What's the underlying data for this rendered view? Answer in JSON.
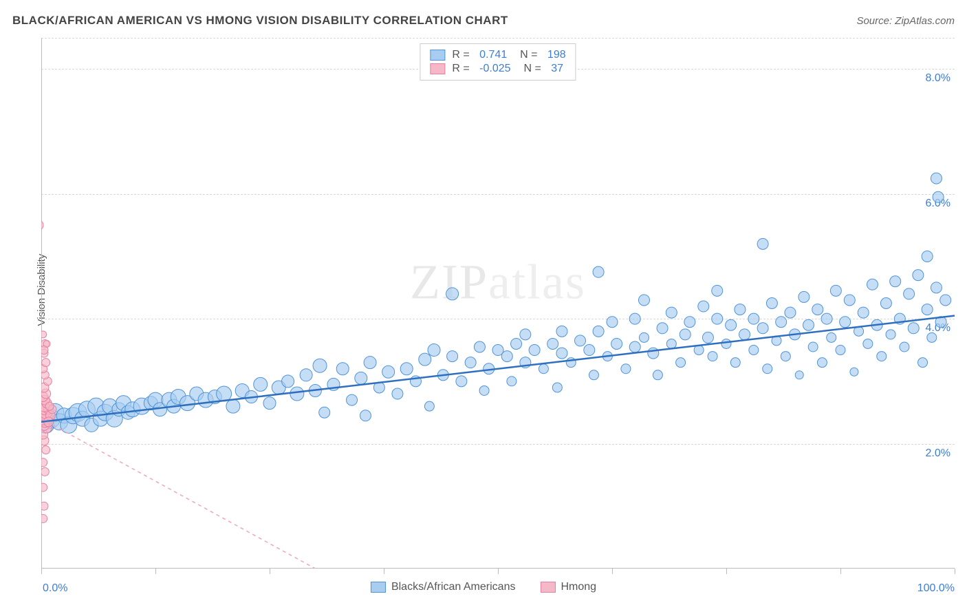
{
  "title": "BLACK/AFRICAN AMERICAN VS HMONG VISION DISABILITY CORRELATION CHART",
  "source": "Source: ZipAtlas.com",
  "ylabel": "Vision Disability",
  "watermark": "ZIPatlas",
  "chart": {
    "type": "scatter",
    "xlim": [
      0,
      100
    ],
    "ylim": [
      0,
      8.5
    ],
    "xtick_positions": [
      0,
      12.5,
      25,
      37.5,
      50,
      62.5,
      75,
      87.5,
      100
    ],
    "xtick_labels": {
      "0": "0.0%",
      "100": "100.0%"
    },
    "ytick_positions": [
      2.0,
      4.0,
      6.0,
      8.0
    ],
    "ytick_labels": [
      "2.0%",
      "4.0%",
      "6.0%",
      "8.0%"
    ],
    "grid_color": "#d8d8d8",
    "background_color": "#ffffff",
    "text_color_title": "#444444",
    "text_color_axis": "#555555",
    "tick_label_color": "#3b7dd8",
    "series": [
      {
        "name": "Blacks/African Americans",
        "fill_color": "#a8cdf0",
        "stroke_color": "#4f93d8",
        "fill_opacity": 0.65,
        "marker_radius_range": [
          6,
          14
        ],
        "correlation_R": 0.741,
        "correlation_N": 198,
        "trendline": {
          "x1": 0,
          "y1": 2.35,
          "x2": 100,
          "y2": 4.05,
          "color": "#2f6fc0",
          "width": 2.5,
          "dash": "none"
        },
        "points": [
          {
            "x": 0.5,
            "y": 2.3,
            "r": 12
          },
          {
            "x": 1,
            "y": 2.4,
            "r": 14
          },
          {
            "x": 1.5,
            "y": 2.5,
            "r": 13
          },
          {
            "x": 2,
            "y": 2.35,
            "r": 12
          },
          {
            "x": 2.5,
            "y": 2.45,
            "r": 11
          },
          {
            "x": 3,
            "y": 2.3,
            "r": 12
          },
          {
            "x": 3.5,
            "y": 2.45,
            "r": 12
          },
          {
            "x": 4,
            "y": 2.5,
            "r": 13
          },
          {
            "x": 4.5,
            "y": 2.4,
            "r": 11
          },
          {
            "x": 5,
            "y": 2.55,
            "r": 12
          },
          {
            "x": 5.5,
            "y": 2.3,
            "r": 10
          },
          {
            "x": 6,
            "y": 2.6,
            "r": 12
          },
          {
            "x": 6.5,
            "y": 2.4,
            "r": 11
          },
          {
            "x": 7,
            "y": 2.5,
            "r": 12
          },
          {
            "x": 7.5,
            "y": 2.6,
            "r": 11
          },
          {
            "x": 8,
            "y": 2.4,
            "r": 12
          },
          {
            "x": 8.5,
            "y": 2.55,
            "r": 10
          },
          {
            "x": 9,
            "y": 2.65,
            "r": 11
          },
          {
            "x": 9.5,
            "y": 2.5,
            "r": 10
          },
          {
            "x": 10,
            "y": 2.55,
            "r": 11
          },
          {
            "x": 11,
            "y": 2.6,
            "r": 12
          },
          {
            "x": 12,
            "y": 2.65,
            "r": 10
          },
          {
            "x": 12.5,
            "y": 2.7,
            "r": 11
          },
          {
            "x": 13,
            "y": 2.55,
            "r": 10
          },
          {
            "x": 14,
            "y": 2.7,
            "r": 11
          },
          {
            "x": 14.5,
            "y": 2.6,
            "r": 10
          },
          {
            "x": 15,
            "y": 2.75,
            "r": 11
          },
          {
            "x": 16,
            "y": 2.65,
            "r": 11
          },
          {
            "x": 17,
            "y": 2.8,
            "r": 10
          },
          {
            "x": 18,
            "y": 2.7,
            "r": 11
          },
          {
            "x": 19,
            "y": 2.75,
            "r": 10
          },
          {
            "x": 20,
            "y": 2.8,
            "r": 11
          },
          {
            "x": 21,
            "y": 2.6,
            "r": 10
          },
          {
            "x": 22,
            "y": 2.85,
            "r": 10
          },
          {
            "x": 23,
            "y": 2.75,
            "r": 9
          },
          {
            "x": 24,
            "y": 2.95,
            "r": 10
          },
          {
            "x": 25,
            "y": 2.65,
            "r": 9
          },
          {
            "x": 26,
            "y": 2.9,
            "r": 10
          },
          {
            "x": 27,
            "y": 3.0,
            "r": 9
          },
          {
            "x": 28,
            "y": 2.8,
            "r": 10
          },
          {
            "x": 29,
            "y": 3.1,
            "r": 9
          },
          {
            "x": 30,
            "y": 2.85,
            "r": 9
          },
          {
            "x": 30.5,
            "y": 3.25,
            "r": 10
          },
          {
            "x": 31,
            "y": 2.5,
            "r": 8
          },
          {
            "x": 32,
            "y": 2.95,
            "r": 9
          },
          {
            "x": 33,
            "y": 3.2,
            "r": 9
          },
          {
            "x": 34,
            "y": 2.7,
            "r": 8
          },
          {
            "x": 35,
            "y": 3.05,
            "r": 9
          },
          {
            "x": 35.5,
            "y": 2.45,
            "r": 8
          },
          {
            "x": 36,
            "y": 3.3,
            "r": 9
          },
          {
            "x": 37,
            "y": 2.9,
            "r": 8
          },
          {
            "x": 38,
            "y": 3.15,
            "r": 9
          },
          {
            "x": 39,
            "y": 2.8,
            "r": 8
          },
          {
            "x": 40,
            "y": 3.2,
            "r": 9
          },
          {
            "x": 41,
            "y": 3.0,
            "r": 8
          },
          {
            "x": 42,
            "y": 3.35,
            "r": 9
          },
          {
            "x": 42.5,
            "y": 2.6,
            "r": 7
          },
          {
            "x": 43,
            "y": 3.5,
            "r": 9
          },
          {
            "x": 44,
            "y": 3.1,
            "r": 8
          },
          {
            "x": 45,
            "y": 3.4,
            "r": 8
          },
          {
            "x": 45,
            "y": 4.4,
            "r": 9
          },
          {
            "x": 46,
            "y": 3.0,
            "r": 8
          },
          {
            "x": 47,
            "y": 3.3,
            "r": 8
          },
          {
            "x": 48,
            "y": 3.55,
            "r": 8
          },
          {
            "x": 48.5,
            "y": 2.85,
            "r": 7
          },
          {
            "x": 49,
            "y": 3.2,
            "r": 8
          },
          {
            "x": 50,
            "y": 3.5,
            "r": 8
          },
          {
            "x": 51,
            "y": 3.4,
            "r": 8
          },
          {
            "x": 51.5,
            "y": 3.0,
            "r": 7
          },
          {
            "x": 52,
            "y": 3.6,
            "r": 8
          },
          {
            "x": 53,
            "y": 3.3,
            "r": 8
          },
          {
            "x": 53,
            "y": 3.75,
            "r": 8
          },
          {
            "x": 54,
            "y": 3.5,
            "r": 8
          },
          {
            "x": 55,
            "y": 3.2,
            "r": 7
          },
          {
            "x": 56,
            "y": 3.6,
            "r": 8
          },
          {
            "x": 56.5,
            "y": 2.9,
            "r": 7
          },
          {
            "x": 57,
            "y": 3.45,
            "r": 8
          },
          {
            "x": 57,
            "y": 3.8,
            "r": 8
          },
          {
            "x": 58,
            "y": 3.3,
            "r": 7
          },
          {
            "x": 59,
            "y": 3.65,
            "r": 8
          },
          {
            "x": 60,
            "y": 3.5,
            "r": 8
          },
          {
            "x": 60.5,
            "y": 3.1,
            "r": 7
          },
          {
            "x": 61,
            "y": 3.8,
            "r": 8
          },
          {
            "x": 61,
            "y": 4.75,
            "r": 8
          },
          {
            "x": 62,
            "y": 3.4,
            "r": 7
          },
          {
            "x": 62.5,
            "y": 3.95,
            "r": 8
          },
          {
            "x": 63,
            "y": 3.6,
            "r": 8
          },
          {
            "x": 64,
            "y": 3.2,
            "r": 7
          },
          {
            "x": 65,
            "y": 3.55,
            "r": 8
          },
          {
            "x": 65,
            "y": 4.0,
            "r": 8
          },
          {
            "x": 66,
            "y": 3.7,
            "r": 7
          },
          {
            "x": 66,
            "y": 4.3,
            "r": 8
          },
          {
            "x": 67,
            "y": 3.45,
            "r": 8
          },
          {
            "x": 67.5,
            "y": 3.1,
            "r": 7
          },
          {
            "x": 68,
            "y": 3.85,
            "r": 8
          },
          {
            "x": 69,
            "y": 3.6,
            "r": 7
          },
          {
            "x": 69,
            "y": 4.1,
            "r": 8
          },
          {
            "x": 70,
            "y": 3.3,
            "r": 7
          },
          {
            "x": 70.5,
            "y": 3.75,
            "r": 8
          },
          {
            "x": 71,
            "y": 3.95,
            "r": 8
          },
          {
            "x": 72,
            "y": 3.5,
            "r": 7
          },
          {
            "x": 72.5,
            "y": 4.2,
            "r": 8
          },
          {
            "x": 73,
            "y": 3.7,
            "r": 8
          },
          {
            "x": 73.5,
            "y": 3.4,
            "r": 7
          },
          {
            "x": 74,
            "y": 4.0,
            "r": 8
          },
          {
            "x": 74,
            "y": 4.45,
            "r": 8
          },
          {
            "x": 75,
            "y": 3.6,
            "r": 7
          },
          {
            "x": 75.5,
            "y": 3.9,
            "r": 8
          },
          {
            "x": 76,
            "y": 3.3,
            "r": 7
          },
          {
            "x": 76.5,
            "y": 4.15,
            "r": 8
          },
          {
            "x": 77,
            "y": 3.75,
            "r": 8
          },
          {
            "x": 78,
            "y": 3.5,
            "r": 7
          },
          {
            "x": 78,
            "y": 4.0,
            "r": 8
          },
          {
            "x": 79,
            "y": 3.85,
            "r": 8
          },
          {
            "x": 79,
            "y": 5.2,
            "r": 8
          },
          {
            "x": 79.5,
            "y": 3.2,
            "r": 7
          },
          {
            "x": 80,
            "y": 4.25,
            "r": 8
          },
          {
            "x": 80.5,
            "y": 3.65,
            "r": 7
          },
          {
            "x": 81,
            "y": 3.95,
            "r": 8
          },
          {
            "x": 81.5,
            "y": 3.4,
            "r": 7
          },
          {
            "x": 82,
            "y": 4.1,
            "r": 8
          },
          {
            "x": 82.5,
            "y": 3.75,
            "r": 8
          },
          {
            "x": 83,
            "y": 3.1,
            "r": 6
          },
          {
            "x": 83.5,
            "y": 4.35,
            "r": 8
          },
          {
            "x": 84,
            "y": 3.9,
            "r": 8
          },
          {
            "x": 84.5,
            "y": 3.55,
            "r": 7
          },
          {
            "x": 85,
            "y": 4.15,
            "r": 8
          },
          {
            "x": 85.5,
            "y": 3.3,
            "r": 7
          },
          {
            "x": 86,
            "y": 4.0,
            "r": 8
          },
          {
            "x": 86.5,
            "y": 3.7,
            "r": 7
          },
          {
            "x": 87,
            "y": 4.45,
            "r": 8
          },
          {
            "x": 87.5,
            "y": 3.5,
            "r": 7
          },
          {
            "x": 88,
            "y": 3.95,
            "r": 8
          },
          {
            "x": 88.5,
            "y": 4.3,
            "r": 8
          },
          {
            "x": 89,
            "y": 3.15,
            "r": 6
          },
          {
            "x": 89.5,
            "y": 3.8,
            "r": 7
          },
          {
            "x": 90,
            "y": 4.1,
            "r": 8
          },
          {
            "x": 90.5,
            "y": 3.6,
            "r": 7
          },
          {
            "x": 91,
            "y": 4.55,
            "r": 8
          },
          {
            "x": 91.5,
            "y": 3.9,
            "r": 8
          },
          {
            "x": 92,
            "y": 3.4,
            "r": 7
          },
          {
            "x": 92.5,
            "y": 4.25,
            "r": 8
          },
          {
            "x": 93,
            "y": 3.75,
            "r": 7
          },
          {
            "x": 93.5,
            "y": 4.6,
            "r": 8
          },
          {
            "x": 94,
            "y": 4.0,
            "r": 8
          },
          {
            "x": 94.5,
            "y": 3.55,
            "r": 7
          },
          {
            "x": 95,
            "y": 4.4,
            "r": 8
          },
          {
            "x": 95.5,
            "y": 3.85,
            "r": 8
          },
          {
            "x": 96,
            "y": 4.7,
            "r": 8
          },
          {
            "x": 96.5,
            "y": 3.3,
            "r": 7
          },
          {
            "x": 97,
            "y": 4.15,
            "r": 8
          },
          {
            "x": 97,
            "y": 5.0,
            "r": 8
          },
          {
            "x": 97.5,
            "y": 3.7,
            "r": 7
          },
          {
            "x": 98,
            "y": 4.5,
            "r": 8
          },
          {
            "x": 98,
            "y": 6.25,
            "r": 8
          },
          {
            "x": 98.2,
            "y": 5.95,
            "r": 8
          },
          {
            "x": 98.5,
            "y": 3.95,
            "r": 8
          },
          {
            "x": 99,
            "y": 4.3,
            "r": 8
          }
        ]
      },
      {
        "name": "Hmong",
        "fill_color": "#f5b8c8",
        "stroke_color": "#e87fa0",
        "fill_opacity": 0.65,
        "marker_radius_range": [
          5,
          9
        ],
        "correlation_R": -0.025,
        "correlation_N": 37,
        "trendline": {
          "x1": 0,
          "y1": 2.4,
          "x2": 30,
          "y2": 0.0,
          "color": "#f0a5ba",
          "width": 1.5,
          "dash": "5,5"
        },
        "points": [
          {
            "x": 0.2,
            "y": 0.8,
            "r": 6
          },
          {
            "x": 0.3,
            "y": 1.0,
            "r": 6
          },
          {
            "x": 0.2,
            "y": 1.3,
            "r": 6
          },
          {
            "x": 0.4,
            "y": 1.55,
            "r": 6
          },
          {
            "x": 0.2,
            "y": 1.7,
            "r": 6
          },
          {
            "x": 0.5,
            "y": 1.9,
            "r": 6
          },
          {
            "x": 0.3,
            "y": 2.05,
            "r": 7
          },
          {
            "x": 0.2,
            "y": 2.15,
            "r": 7
          },
          {
            "x": 0.6,
            "y": 2.25,
            "r": 7
          },
          {
            "x": 0.3,
            "y": 2.3,
            "r": 8
          },
          {
            "x": 0.4,
            "y": 2.35,
            "r": 8
          },
          {
            "x": 0.2,
            "y": 2.4,
            "r": 9
          },
          {
            "x": 0.7,
            "y": 2.4,
            "r": 8
          },
          {
            "x": 0.3,
            "y": 2.45,
            "r": 8
          },
          {
            "x": 0.5,
            "y": 2.5,
            "r": 9
          },
          {
            "x": 0.4,
            "y": 2.55,
            "r": 8
          },
          {
            "x": 0.8,
            "y": 2.55,
            "r": 7
          },
          {
            "x": 0.3,
            "y": 2.6,
            "r": 8
          },
          {
            "x": 0.6,
            "y": 2.65,
            "r": 7
          },
          {
            "x": 0.4,
            "y": 2.7,
            "r": 7
          },
          {
            "x": 0.2,
            "y": 2.75,
            "r": 7
          },
          {
            "x": 0.5,
            "y": 2.8,
            "r": 7
          },
          {
            "x": 0.3,
            "y": 2.9,
            "r": 7
          },
          {
            "x": 0.7,
            "y": 3.0,
            "r": 6
          },
          {
            "x": 0.4,
            "y": 3.1,
            "r": 6
          },
          {
            "x": 0.2,
            "y": 3.2,
            "r": 6
          },
          {
            "x": 0.5,
            "y": 3.3,
            "r": 6
          },
          {
            "x": 0.3,
            "y": 3.45,
            "r": 6
          },
          {
            "x": 0.4,
            "y": 3.6,
            "r": 6
          },
          {
            "x": 0.2,
            "y": 3.75,
            "r": 5
          },
          {
            "x": 0.6,
            "y": 3.6,
            "r": 5
          },
          {
            "x": 0.3,
            "y": 3.5,
            "r": 6
          },
          {
            "x": -0.3,
            "y": 5.5,
            "r": 7
          },
          {
            "x": 1.0,
            "y": 2.45,
            "r": 7
          },
          {
            "x": 1.2,
            "y": 2.55,
            "r": 6
          },
          {
            "x": 0.8,
            "y": 2.35,
            "r": 7
          },
          {
            "x": 0.9,
            "y": 2.6,
            "r": 6
          }
        ]
      }
    ],
    "legend_bottom": [
      {
        "label": "Blacks/African Americans",
        "fill": "#a8cdf0",
        "stroke": "#4f93d8"
      },
      {
        "label": "Hmong",
        "fill": "#f5b8c8",
        "stroke": "#e87fa0"
      }
    ]
  }
}
